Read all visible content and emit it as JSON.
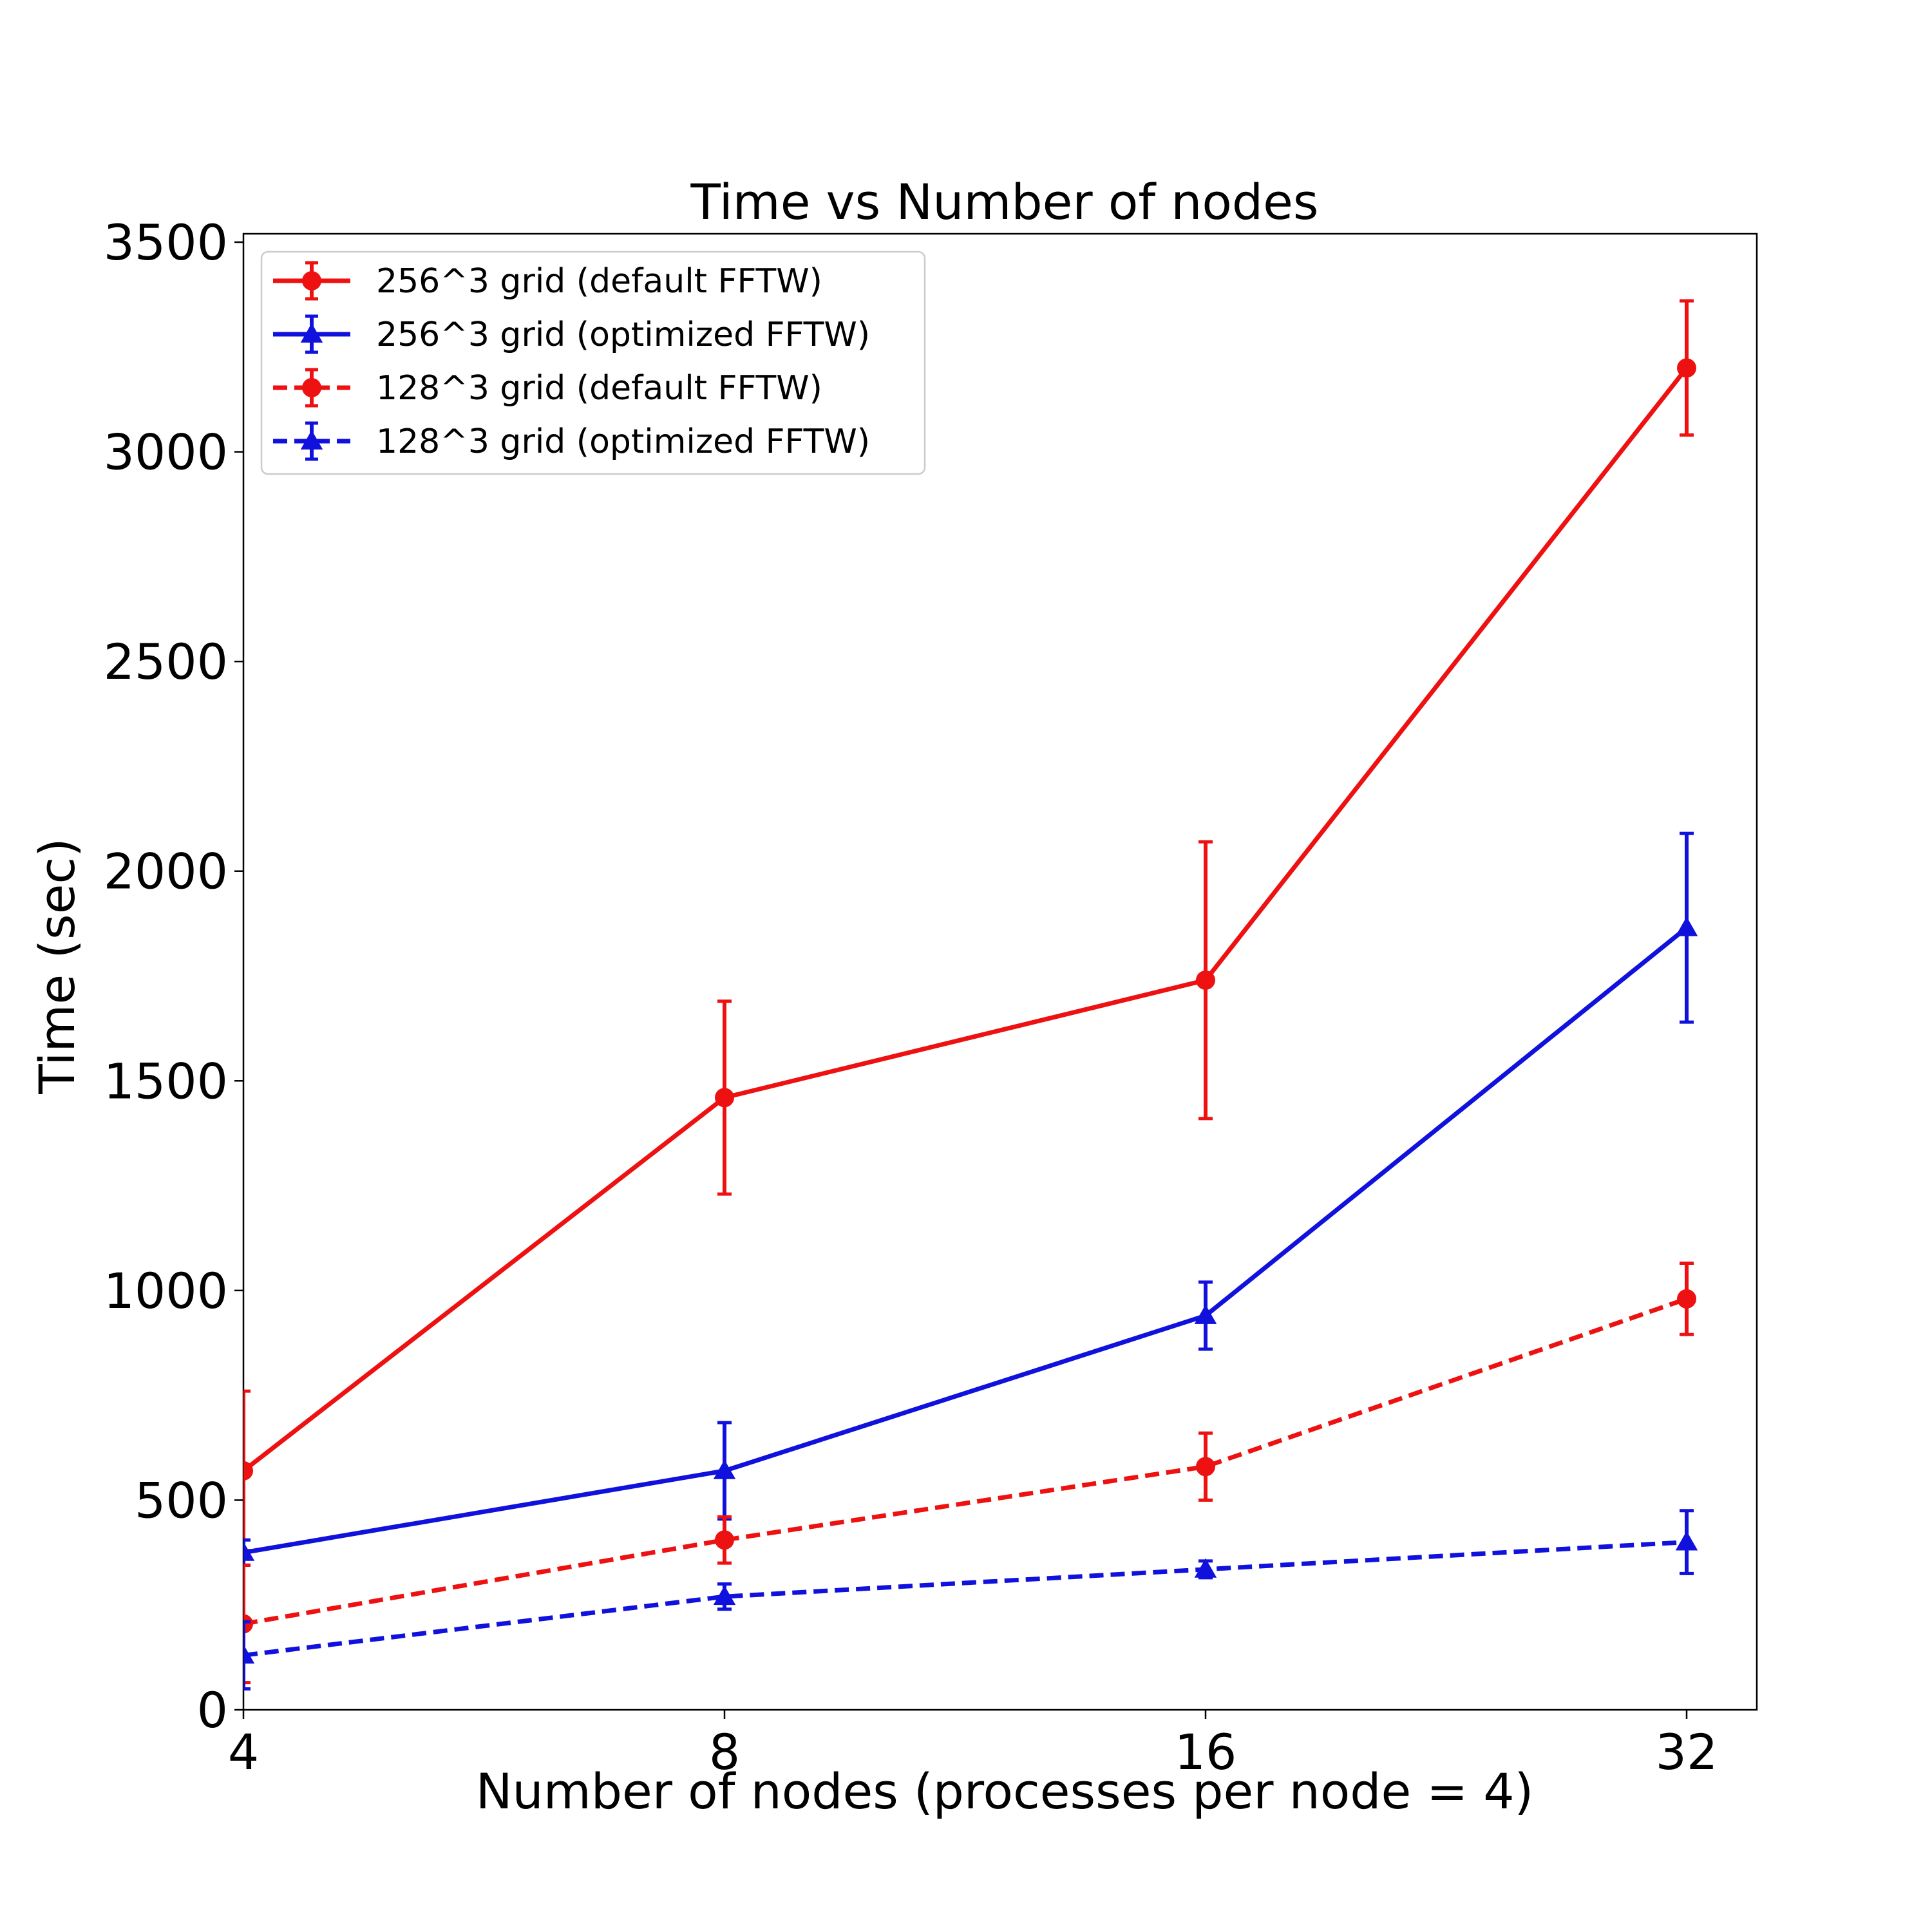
{
  "chart_data": {
    "type": "line",
    "title": "Time vs Number of nodes",
    "xlabel": "Number of nodes (processes per node = 4)",
    "ylabel": "Time (sec)",
    "x_scale": "log2",
    "x": [
      4,
      8,
      16,
      32
    ],
    "x_ticks": [
      "4",
      "8",
      "16",
      "32"
    ],
    "ylim": [
      0,
      3520
    ],
    "y_ticks": [
      "0",
      "500",
      "1000",
      "1500",
      "2000",
      "2500",
      "3000",
      "3500"
    ],
    "grid": false,
    "legend_position": "top-left",
    "series": [
      {
        "name": "256^3 grid (default FFTW)",
        "color": "#ee1111",
        "line_style": "solid",
        "marker": "circle",
        "values": [
          570,
          1460,
          1740,
          3200
        ],
        "errors": [
          190,
          230,
          330,
          160
        ]
      },
      {
        "name": "256^3 grid (optimized FFTW)",
        "color": "#1111dd",
        "line_style": "solid",
        "marker": "triangle",
        "values": [
          375,
          570,
          940,
          1865
        ],
        "errors": [
          30,
          115,
          80,
          225
        ]
      },
      {
        "name": "128^3 grid (default FFTW)",
        "color": "#ee1111",
        "line_style": "dashed",
        "marker": "circle",
        "values": [
          205,
          405,
          580,
          980
        ],
        "errors": [
          140,
          55,
          80,
          85
        ]
      },
      {
        "name": "128^3 grid (optimized FFTW)",
        "color": "#1111dd",
        "line_style": "dashed",
        "marker": "triangle",
        "values": [
          130,
          270,
          335,
          400
        ],
        "errors": [
          80,
          30,
          20,
          75
        ]
      }
    ]
  }
}
